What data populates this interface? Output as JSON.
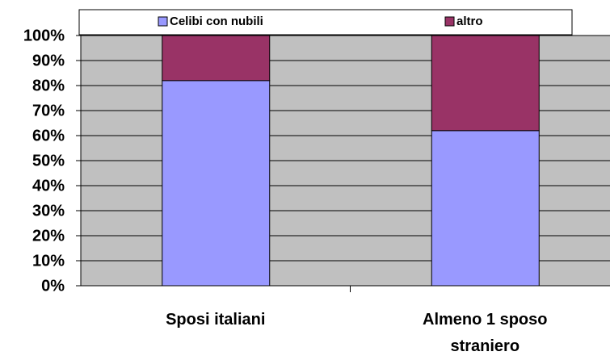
{
  "chart_data": {
    "type": "stacked_bar",
    "categories": [
      "Sposi italiani",
      "Almeno 1 sposo straniero"
    ],
    "series": [
      {
        "name": "Celibi con nubili",
        "color": "#9999ff",
        "values": [
          82,
          62
        ]
      },
      {
        "name": "altro",
        "color": "#993366",
        "values": [
          18,
          38
        ]
      }
    ],
    "ylim": [
      0,
      100
    ],
    "yticks": [
      {
        "value": 0,
        "label": "0%"
      },
      {
        "value": 10,
        "label": "10%"
      },
      {
        "value": 20,
        "label": "20%"
      },
      {
        "value": 30,
        "label": "30%"
      },
      {
        "value": 40,
        "label": "40%"
      },
      {
        "value": 50,
        "label": "50%"
      },
      {
        "value": 60,
        "label": "60%"
      },
      {
        "value": 70,
        "label": "70%"
      },
      {
        "value": 80,
        "label": "80%"
      },
      {
        "value": 90,
        "label": "90%"
      },
      {
        "value": 100,
        "label": "100%"
      }
    ],
    "grid": true,
    "legend": "top"
  }
}
